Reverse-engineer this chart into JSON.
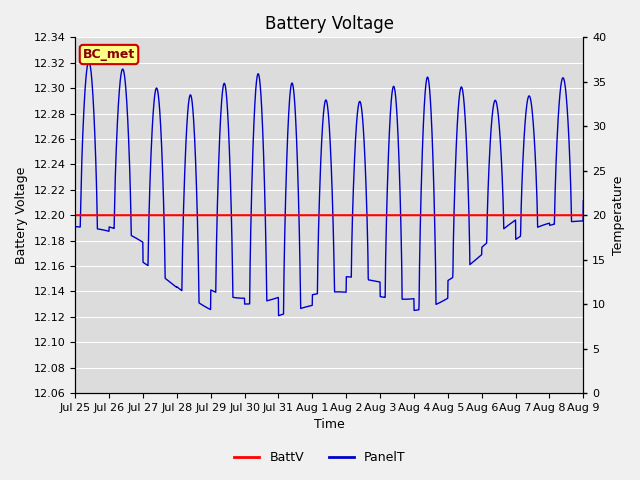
{
  "title": "Battery Voltage",
  "xlabel": "Time",
  "ylabel_left": "Battery Voltage",
  "ylabel_right": "Temperature",
  "ylim_left": [
    12.06,
    12.34
  ],
  "ylim_right": [
    0,
    40
  ],
  "xtick_labels": [
    "Jul 25",
    "Jul 26",
    "Jul 27",
    "Jul 28",
    "Jul 29",
    "Jul 30",
    "Jul 31",
    "Aug 1",
    "Aug 2",
    "Aug 3",
    "Aug 4",
    "Aug 5",
    "Aug 6",
    "Aug 7",
    "Aug 8",
    "Aug 9"
  ],
  "battv_value": 12.2,
  "battv_color": "#ff0000",
  "panelt_color": "#0000cc",
  "bg_color": "#dcdcdc",
  "fig_bg_color": "#f0f0f0",
  "legend_label": "BC_met",
  "legend_bg": "#ffff88",
  "legend_border": "#cc0000",
  "legend_text_color": "#880000",
  "legend_entries": [
    "BattV",
    "PanelT"
  ],
  "title_fontsize": 12,
  "axis_label_fontsize": 9,
  "tick_fontsize": 8,
  "num_days": 15,
  "samples_per_day": 144
}
